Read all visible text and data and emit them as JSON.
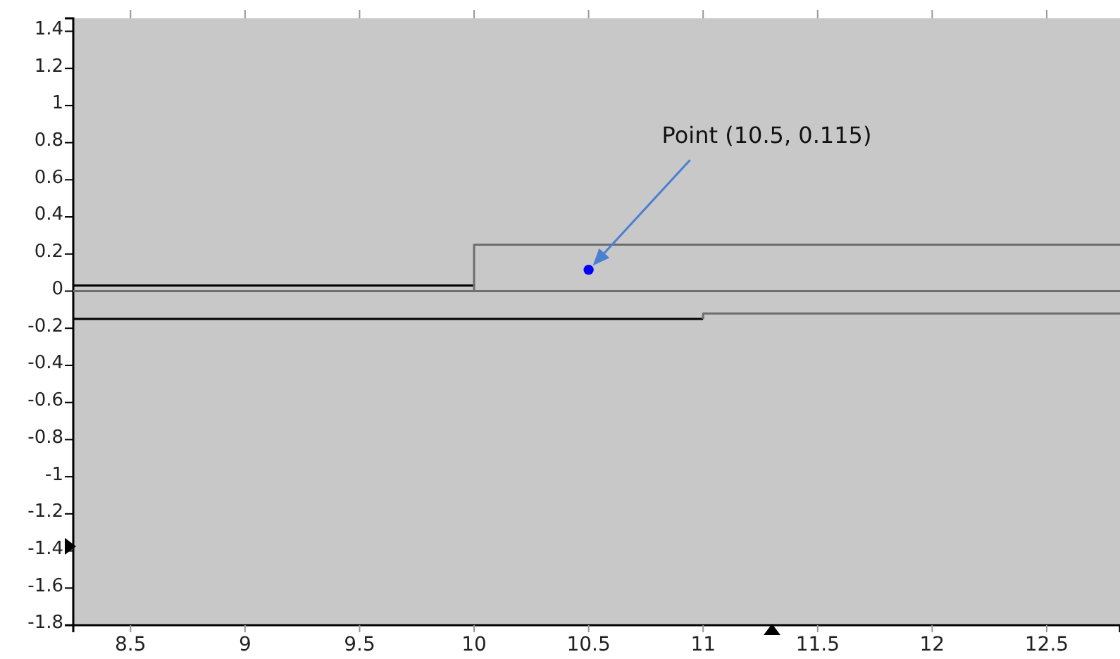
{
  "chart_data": {
    "type": "line",
    "xlim": [
      8.25,
      12.82
    ],
    "ylim": [
      -1.8,
      1.47
    ],
    "xticks": [
      8.5,
      9,
      9.5,
      10,
      10.5,
      11,
      11.5,
      12,
      12.5
    ],
    "yticks": [
      1.4,
      1.2,
      1,
      0.8,
      0.6,
      0.4,
      0.2,
      0,
      -0.2,
      -0.4,
      -0.6,
      -0.8,
      -1,
      -1.2,
      -1.4,
      -1.6,
      -1.8
    ],
    "grid": false,
    "line_style": "solid",
    "series": [
      {
        "color": "#000000",
        "x": [
          8.25,
          10
        ],
        "values": [
          0.03,
          0.03
        ]
      },
      {
        "color": "#6e6e6e",
        "x": [
          8.25,
          12.82
        ],
        "values": [
          0,
          0
        ]
      },
      {
        "color": "#6e6e6e",
        "x": [
          10,
          10,
          12.82
        ],
        "values": [
          0,
          0.25,
          0.25
        ]
      },
      {
        "color": "#000000",
        "x": [
          8.25,
          11
        ],
        "values": [
          -0.15,
          -0.15
        ]
      },
      {
        "color": "#6e6e6e",
        "x": [
          11,
          11,
          12.82
        ],
        "values": [
          -0.15,
          -0.12,
          -0.12
        ]
      },
      {
        "type": "scatter",
        "marker": "circle",
        "color": "#0000ff",
        "x": [
          10.5
        ],
        "values": [
          0.115
        ]
      }
    ],
    "annotations": [
      "Point (10.5, 0.115)"
    ]
  }
}
